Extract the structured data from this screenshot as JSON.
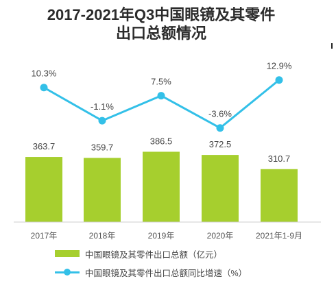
{
  "title": {
    "line1": "2017-2021年Q3中国眼镜及其零件",
    "line2": "出口总额情况"
  },
  "chart_data": {
    "type": "bar",
    "categories": [
      "2017年",
      "2018年",
      "2019年",
      "2020年",
      "2021年1-9月"
    ],
    "series": [
      {
        "name": "中国眼镜及其零件出口总额（亿元）",
        "type": "bar",
        "values": [
          363.7,
          359.7,
          386.5,
          372.5,
          310.7
        ],
        "labels": [
          "363.7",
          "359.7",
          "386.5",
          "372.5",
          "310.7"
        ]
      },
      {
        "name": "中国眼镜及其零件出口总额同比增速（%）",
        "type": "line",
        "values": [
          10.3,
          -1.1,
          7.5,
          -3.6,
          12.9
        ],
        "labels": [
          "10.3%",
          "-1.1%",
          "7.5%",
          "-3.6%",
          "12.9%"
        ]
      }
    ],
    "legend_position": "bottom",
    "grid": false,
    "colors": {
      "bar": "#a6cf2e",
      "line": "#33c0e8"
    }
  },
  "legend": {
    "bar_label": "中国眼镜及其零件出口总额（亿元）",
    "line_label": "中国眼镜及其零件出口总额同比增速（%）"
  }
}
